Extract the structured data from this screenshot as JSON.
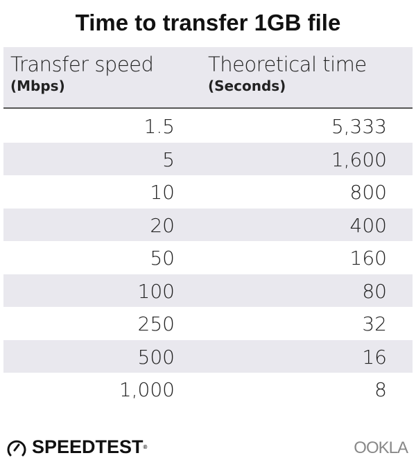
{
  "chart_data": {
    "type": "table",
    "title": "Time to transfer 1GB file",
    "columns": [
      {
        "label": "Transfer speed",
        "unit": "(Mbps)"
      },
      {
        "label": "Theoretical time",
        "unit": "(Seconds)"
      }
    ],
    "rows": [
      [
        "1.5",
        "5,333"
      ],
      [
        "5",
        "1,600"
      ],
      [
        "10",
        "800"
      ],
      [
        "20",
        "400"
      ],
      [
        "50",
        "160"
      ],
      [
        "100",
        "80"
      ],
      [
        "250",
        "32"
      ],
      [
        "500",
        "16"
      ],
      [
        "1,000",
        "8"
      ]
    ],
    "colors": {
      "header_bg": "#e9e8ee",
      "stripe": "#e9e8ee",
      "rule": "#555555"
    }
  },
  "branding": {
    "left": "SPEEDTEST",
    "right": "OOKLA"
  }
}
